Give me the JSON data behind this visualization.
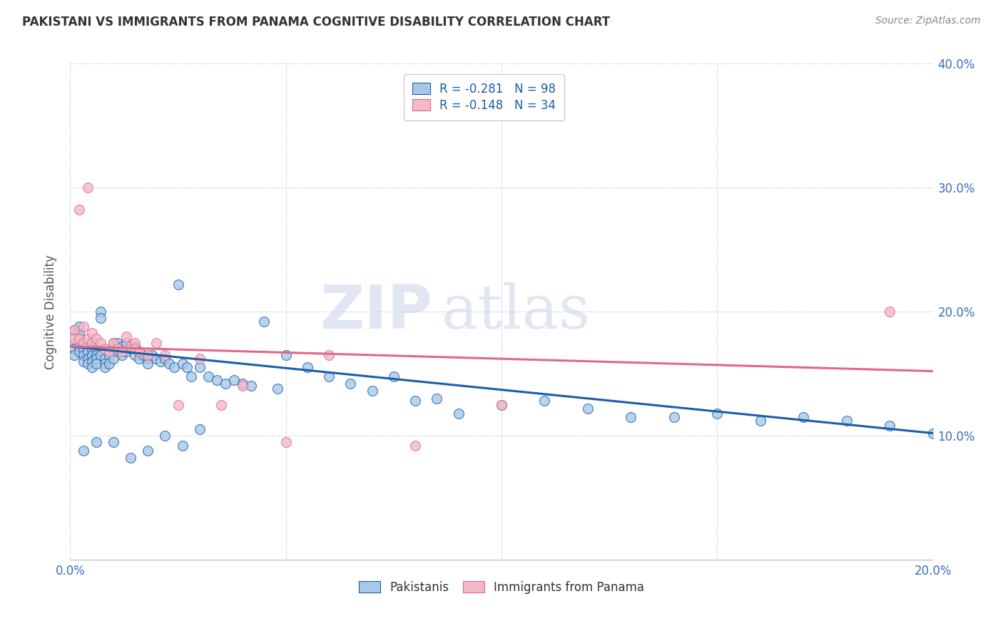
{
  "title": "PAKISTANI VS IMMIGRANTS FROM PANAMA COGNITIVE DISABILITY CORRELATION CHART",
  "source": "Source: ZipAtlas.com",
  "ylabel_label": "Cognitive Disability",
  "xlim": [
    0.0,
    0.2
  ],
  "ylim": [
    0.0,
    0.4
  ],
  "xticks": [
    0.0,
    0.05,
    0.1,
    0.15,
    0.2
  ],
  "yticks": [
    0.0,
    0.1,
    0.2,
    0.3,
    0.4
  ],
  "color_blue": "#a8c8e8",
  "color_pink": "#f4b8c8",
  "line_blue": "#1a5fa8",
  "line_pink": "#e06888",
  "watermark_zip": "ZIP",
  "watermark_atlas": "atlas",
  "legend_label1": "R = -0.281   N = 98",
  "legend_label2": "R = -0.148   N = 34",
  "pakistani_x": [
    0.001,
    0.001,
    0.001,
    0.001,
    0.002,
    0.002,
    0.002,
    0.002,
    0.002,
    0.003,
    0.003,
    0.003,
    0.003,
    0.004,
    0.004,
    0.004,
    0.004,
    0.005,
    0.005,
    0.005,
    0.005,
    0.005,
    0.006,
    0.006,
    0.006,
    0.006,
    0.007,
    0.007,
    0.007,
    0.008,
    0.008,
    0.008,
    0.009,
    0.009,
    0.01,
    0.01,
    0.01,
    0.011,
    0.011,
    0.012,
    0.012,
    0.013,
    0.013,
    0.014,
    0.015,
    0.015,
    0.016,
    0.016,
    0.017,
    0.018,
    0.018,
    0.019,
    0.02,
    0.021,
    0.022,
    0.023,
    0.024,
    0.025,
    0.026,
    0.027,
    0.028,
    0.03,
    0.032,
    0.034,
    0.036,
    0.038,
    0.04,
    0.042,
    0.045,
    0.048,
    0.05,
    0.055,
    0.06,
    0.065,
    0.07,
    0.075,
    0.08,
    0.085,
    0.09,
    0.1,
    0.11,
    0.12,
    0.13,
    0.14,
    0.15,
    0.16,
    0.17,
    0.18,
    0.19,
    0.2,
    0.003,
    0.006,
    0.01,
    0.014,
    0.018,
    0.022,
    0.026,
    0.03
  ],
  "pakistani_y": [
    0.185,
    0.175,
    0.17,
    0.165,
    0.188,
    0.182,
    0.178,
    0.172,
    0.168,
    0.175,
    0.17,
    0.165,
    0.16,
    0.172,
    0.168,
    0.162,
    0.158,
    0.175,
    0.17,
    0.165,
    0.16,
    0.155,
    0.17,
    0.165,
    0.162,
    0.158,
    0.2,
    0.195,
    0.165,
    0.162,
    0.158,
    0.155,
    0.165,
    0.158,
    0.175,
    0.168,
    0.162,
    0.175,
    0.168,
    0.172,
    0.165,
    0.168,
    0.175,
    0.17,
    0.165,
    0.172,
    0.168,
    0.162,
    0.165,
    0.162,
    0.158,
    0.165,
    0.162,
    0.16,
    0.162,
    0.158,
    0.155,
    0.222,
    0.158,
    0.155,
    0.148,
    0.155,
    0.148,
    0.145,
    0.142,
    0.145,
    0.142,
    0.14,
    0.192,
    0.138,
    0.165,
    0.155,
    0.148,
    0.142,
    0.136,
    0.148,
    0.128,
    0.13,
    0.118,
    0.125,
    0.128,
    0.122,
    0.115,
    0.115,
    0.118,
    0.112,
    0.115,
    0.112,
    0.108,
    0.102,
    0.088,
    0.095,
    0.095,
    0.082,
    0.088,
    0.1,
    0.092,
    0.105
  ],
  "panama_x": [
    0.001,
    0.001,
    0.002,
    0.002,
    0.003,
    0.003,
    0.004,
    0.004,
    0.005,
    0.005,
    0.006,
    0.007,
    0.008,
    0.009,
    0.01,
    0.011,
    0.012,
    0.013,
    0.014,
    0.015,
    0.015,
    0.016,
    0.018,
    0.02,
    0.022,
    0.025,
    0.03,
    0.035,
    0.04,
    0.05,
    0.06,
    0.08,
    0.1,
    0.19
  ],
  "panama_y": [
    0.185,
    0.178,
    0.282,
    0.178,
    0.188,
    0.175,
    0.3,
    0.178,
    0.183,
    0.175,
    0.178,
    0.175,
    0.17,
    0.168,
    0.175,
    0.17,
    0.168,
    0.18,
    0.172,
    0.175,
    0.17,
    0.168,
    0.165,
    0.175,
    0.165,
    0.125,
    0.162,
    0.125,
    0.14,
    0.095,
    0.165,
    0.092,
    0.125,
    0.2
  ]
}
